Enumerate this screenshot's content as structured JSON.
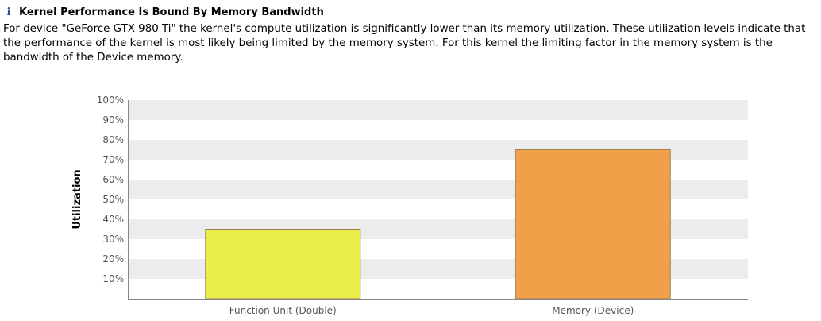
{
  "header": {
    "icon": "info-icon",
    "title": "Kernel Performance Is Bound By Memory Bandwidth",
    "description": "For device \"GeForce GTX 980 Ti\" the kernel's compute utilization is significantly lower than its memory utilization. These utilization levels indicate that the performance of the kernel is most likely being limited by the memory system. For this kernel the limiting factor in the memory system is the bandwidth of the Device memory."
  },
  "chart_data": {
    "type": "bar",
    "categories": [
      "Function Unit (Double)",
      "Memory (Device)"
    ],
    "values": [
      35,
      75
    ],
    "colors": [
      "#e8ee4a",
      "#f0a048"
    ],
    "bar_border_color": "#a08050",
    "title": "",
    "xlabel": "",
    "ylabel": "Utilization",
    "ylim": [
      0,
      100
    ],
    "yticks": [
      10,
      20,
      30,
      40,
      50,
      60,
      70,
      80,
      90,
      100
    ],
    "ytick_labels": [
      "10%",
      "20%",
      "30%",
      "40%",
      "50%",
      "60%",
      "70%",
      "80%",
      "90%",
      "100%"
    ],
    "grid": "alternating horizontal bands",
    "band_color": "#ececec",
    "legend": "none"
  }
}
